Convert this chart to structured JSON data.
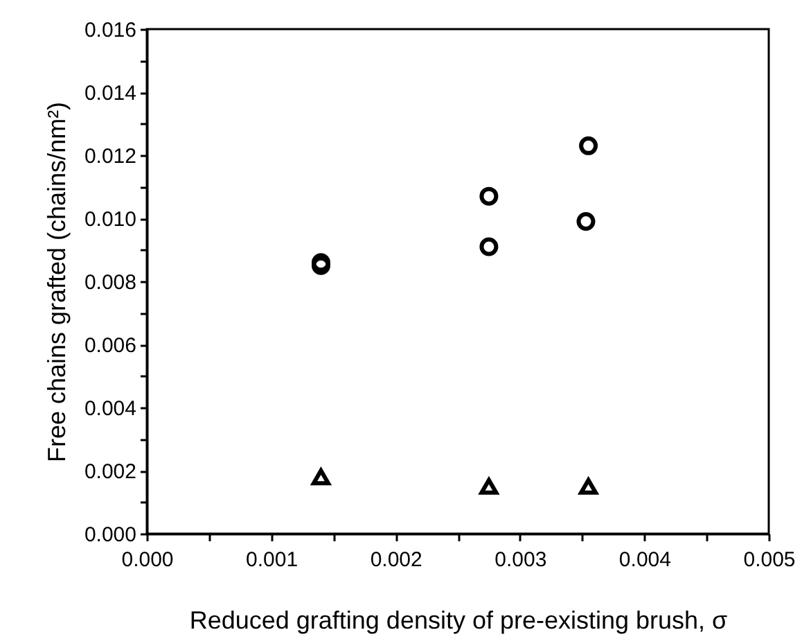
{
  "chart_data": {
    "type": "scatter",
    "xlabel": "Reduced grafting density of pre-existing brush, σ",
    "ylabel": "Free chains grafted (chains/nm²)",
    "xlim": [
      0,
      0.005
    ],
    "ylim": [
      0,
      0.016
    ],
    "xticks": [
      {
        "value": 0,
        "label": "0.000"
      },
      {
        "value": 0.0005,
        "label": null
      },
      {
        "value": 0.001,
        "label": "0.001"
      },
      {
        "value": 0.0015,
        "label": null
      },
      {
        "value": 0.002,
        "label": "0.002"
      },
      {
        "value": 0.0025,
        "label": null
      },
      {
        "value": 0.003,
        "label": "0.003"
      },
      {
        "value": 0.0035,
        "label": null
      },
      {
        "value": 0.004,
        "label": "0.004"
      },
      {
        "value": 0.0045,
        "label": null
      },
      {
        "value": 0.005,
        "label": "0.005"
      }
    ],
    "yticks": [
      {
        "value": 0,
        "label": "0.000"
      },
      {
        "value": 0.001,
        "label": null
      },
      {
        "value": 0.002,
        "label": "0.002"
      },
      {
        "value": 0.003,
        "label": null
      },
      {
        "value": 0.004,
        "label": "0.004"
      },
      {
        "value": 0.005,
        "label": null
      },
      {
        "value": 0.006,
        "label": "0.006"
      },
      {
        "value": 0.007,
        "label": null
      },
      {
        "value": 0.008,
        "label": "0.008"
      },
      {
        "value": 0.009,
        "label": null
      },
      {
        "value": 0.01,
        "label": "0.010"
      },
      {
        "value": 0.011,
        "label": null
      },
      {
        "value": 0.012,
        "label": "0.012"
      },
      {
        "value": 0.013,
        "label": null
      },
      {
        "value": 0.014,
        "label": "0.014"
      },
      {
        "value": 0.015,
        "label": null
      },
      {
        "value": 0.016,
        "label": "0.016"
      }
    ],
    "grid": false,
    "series": [
      {
        "color": "#000000",
        "marker": "circle",
        "x": [
          0.0014,
          0.0014,
          0.00275,
          0.00275,
          0.00355,
          0.00353
        ],
        "values": [
          0.0086,
          0.0085,
          0.0107,
          0.0091,
          0.0123,
          0.0099
        ]
      },
      {
        "color": "#000000",
        "marker": "triangle",
        "x": [
          0.0014,
          0.00275,
          0.00355
        ],
        "values": [
          0.0018,
          0.0015,
          0.0015
        ]
      }
    ]
  }
}
